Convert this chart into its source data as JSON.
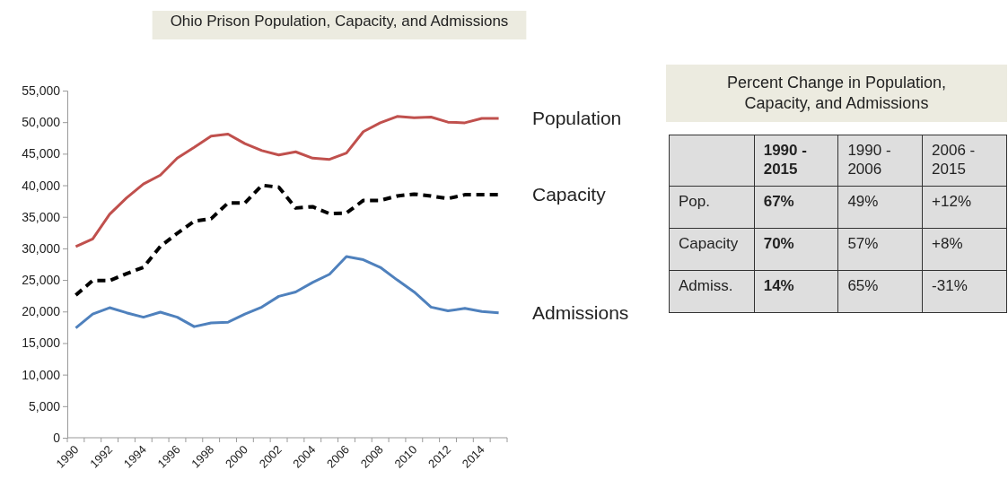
{
  "chart_data": [
    {
      "type": "line",
      "title": "Ohio Prison Population, Capacity, and Admissions",
      "categories": [
        "1990",
        null,
        "1992",
        null,
        "1994",
        null,
        "1996",
        null,
        "1998",
        null,
        "2000",
        null,
        "2002",
        null,
        "2004",
        null,
        "2006",
        null,
        "2008",
        null,
        "2010",
        null,
        "2012",
        null,
        "2014",
        null
      ],
      "series": [
        {
          "name": "Population",
          "color": "#c0504d",
          "line_style": "solid",
          "values": [
            30300,
            31500,
            35400,
            38000,
            40200,
            41600,
            44300,
            46000,
            47800,
            48100,
            46600,
            45500,
            44800,
            45300,
            44300,
            44100,
            45100,
            48500,
            49900,
            50900,
            50700,
            50800,
            50000,
            49900,
            50600,
            50600
          ]
        },
        {
          "name": "Capacity",
          "color": "#000000",
          "line_style": "dashed",
          "values": [
            22600,
            24900,
            24900,
            26000,
            27000,
            30300,
            32400,
            34300,
            34700,
            37200,
            37200,
            40000,
            39700,
            36400,
            36600,
            35500,
            35600,
            37600,
            37600,
            38300,
            38600,
            38300,
            37900,
            38500,
            38500,
            38500
          ]
        },
        {
          "name": "Admissions",
          "color": "#4f81bd",
          "line_style": "solid",
          "values": [
            17400,
            19600,
            20600,
            19800,
            19100,
            19900,
            19100,
            17600,
            18200,
            18300,
            19600,
            20700,
            22400,
            23100,
            24600,
            25900,
            28700,
            28200,
            27000,
            25000,
            23100,
            20700,
            20100,
            20500,
            20000,
            19800
          ]
        }
      ],
      "ylim": [
        0,
        55000
      ],
      "yticks": [
        0,
        {
          "value": 5000,
          "label": "5,000"
        },
        {
          "value": 10000,
          "label": "10,000"
        },
        {
          "value": 15000,
          "label": "15,000"
        },
        {
          "value": 20000,
          "label": "20,000"
        },
        {
          "value": 25000,
          "label": "25,000"
        },
        {
          "value": 30000,
          "label": "30,000"
        },
        {
          "value": 35000,
          "label": "35,000"
        },
        {
          "value": 40000,
          "label": "40,000"
        },
        {
          "value": 45000,
          "label": "45,000"
        },
        {
          "value": 50000,
          "label": "50,000"
        },
        {
          "value": 55000,
          "label": "55,000"
        }
      ],
      "grid": false,
      "marker": "none"
    },
    {
      "type": "other",
      "title": "Percent Change in Population, Capacity, and Admissions",
      "annotations": [
        "1990 - 2015",
        "1990 - 2006",
        "2006 - 2015",
        "Pop.",
        "67%",
        "49%",
        "+12%",
        "Capacity",
        "70%",
        "57%",
        "+8%",
        "Admiss.",
        "14%",
        "65%",
        "-31%"
      ]
    }
  ]
}
